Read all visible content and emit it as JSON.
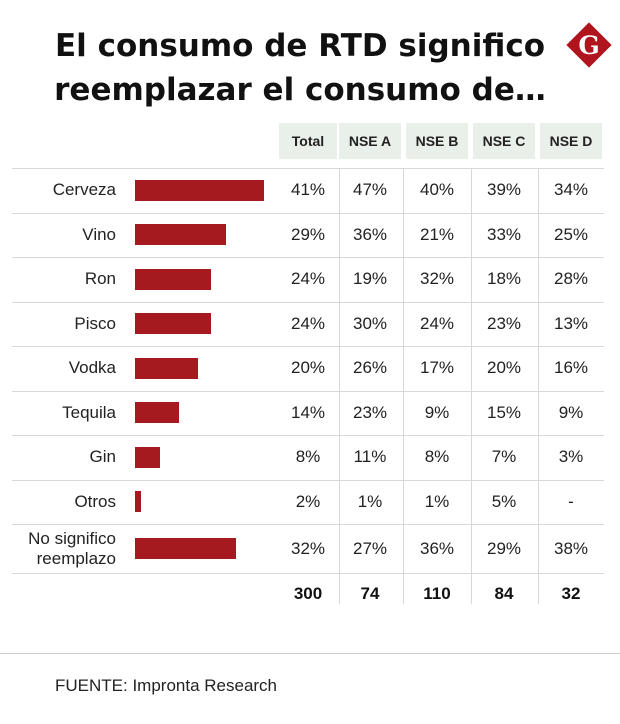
{
  "header": {
    "title_line1": "El consumo de RTD significo",
    "title_line2": "reemplazar el consumo de…",
    "logo_letter": "G"
  },
  "colors": {
    "bar": "#a51a1f",
    "header_bg": "#e9efe9",
    "logo": "#b0151e"
  },
  "chart_data": {
    "type": "bar",
    "orientation": "horizontal",
    "title": "El consumo de RTD significo reemplazar el consumo de…",
    "columns": [
      "Total",
      "NSE A",
      "NSE B",
      "NSE C",
      "NSE D"
    ],
    "rows": [
      {
        "label": "Cerveza",
        "value": 41,
        "cells": [
          "41%",
          "47%",
          "40%",
          "39%",
          "34%"
        ]
      },
      {
        "label": "Vino",
        "value": 29,
        "cells": [
          "29%",
          "36%",
          "21%",
          "33%",
          "25%"
        ]
      },
      {
        "label": "Ron",
        "value": 24,
        "cells": [
          "24%",
          "19%",
          "32%",
          "18%",
          "28%"
        ]
      },
      {
        "label": "Pisco",
        "value": 24,
        "cells": [
          "24%",
          "30%",
          "24%",
          "23%",
          "13%"
        ]
      },
      {
        "label": "Vodka",
        "value": 20,
        "cells": [
          "20%",
          "26%",
          "17%",
          "20%",
          "16%"
        ]
      },
      {
        "label": "Tequila",
        "value": 14,
        "cells": [
          "14%",
          "23%",
          "9%",
          "15%",
          "9%"
        ]
      },
      {
        "label": "Gin",
        "value": 8,
        "cells": [
          "8%",
          "11%",
          "8%",
          "7%",
          "3%"
        ]
      },
      {
        "label": "Otros",
        "value": 2,
        "cells": [
          "2%",
          "1%",
          "1%",
          "5%",
          "-"
        ]
      },
      {
        "label": "No significo reemplazo",
        "label_lines": [
          "No significo",
          "reemplazo"
        ],
        "value": 32,
        "cells": [
          "32%",
          "27%",
          "36%",
          "29%",
          "38%"
        ]
      }
    ],
    "totals": [
      "300",
      "74",
      "110",
      "84",
      "32"
    ],
    "xlim": [
      0,
      41
    ]
  },
  "footer": {
    "source": "FUENTE: Impronta Research"
  }
}
